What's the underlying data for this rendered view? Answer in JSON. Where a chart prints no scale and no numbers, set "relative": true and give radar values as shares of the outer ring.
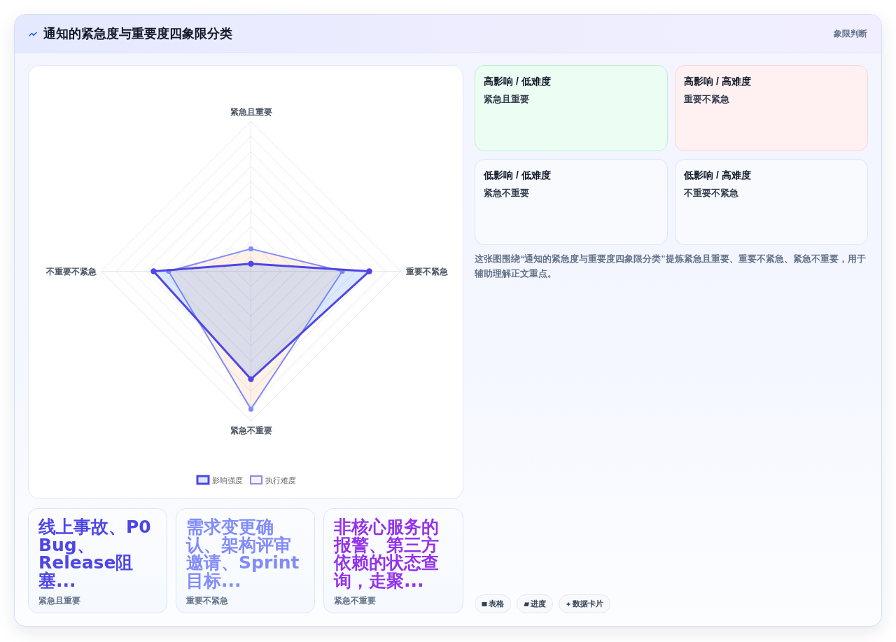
{
  "chart_data": [
    {
      "type": "other",
      "title": "通知的紧急度与重要度四象限分类",
      "subtitle": "象限判断"
    },
    {
      "type": "radar",
      "categories": [
        "紧急且重要",
        "重要不紧急",
        "紧急不重要",
        "不重要不紧急"
      ],
      "relative": true,
      "grid": true,
      "legend": "bottom",
      "marker": "circle",
      "series": [
        {
          "name": "影响强度",
          "color": "#4f46e5",
          "values": [
            0.05,
            0.79,
            0.72,
            0.65
          ]
        },
        {
          "name": "执行难度",
          "color": "#818cf8",
          "values": [
            0.15,
            0.61,
            0.92,
            0.55
          ]
        }
      ]
    },
    {
      "type": "other",
      "title": "高影响 / 低难度",
      "subtitle": "紧急且重要"
    },
    {
      "type": "other",
      "title": "高影响 / 高难度",
      "subtitle": "重要不紧急"
    },
    {
      "type": "other",
      "title": "低影响 / 低难度",
      "subtitle": "紧急不重要"
    },
    {
      "type": "other",
      "title": "低影响 / 高难度",
      "subtitle": "不重要不紧急"
    },
    {
      "type": "other",
      "annotations": [
        "这张图围绕“通知的紧急度与重要度四象限分类”提炼紧急且重要、重要不紧急、紧急不重要，用于辅助理解正文重点。",
        "表格",
        "进度",
        "数据卡片"
      ]
    },
    {
      "type": "other",
      "title": "线上事故、P0 Bug、Release阻塞...",
      "subtitle": "紧急且重要"
    },
    {
      "type": "other",
      "title": "需求变更确认、架构评审邀请、Sprint目标...",
      "subtitle": "重要不紧急"
    },
    {
      "type": "other",
      "title": "非核心服务的报警、第三方依赖的状态查询，走聚...",
      "subtitle": "紧急不重要"
    }
  ]
}
